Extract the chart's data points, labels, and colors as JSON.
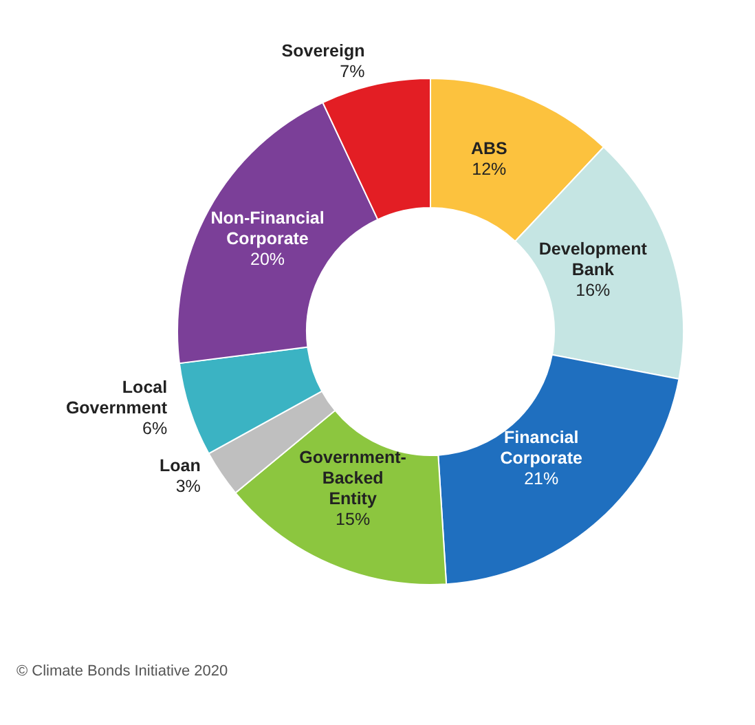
{
  "chart_data": {
    "type": "donut",
    "categories": [
      "ABS",
      "Development Bank",
      "Financial Corporate",
      "Government-Backed Entity",
      "Loan",
      "Local Government",
      "Non-Financial Corporate",
      "Sovereign"
    ],
    "values": [
      12,
      16,
      21,
      15,
      3,
      6,
      20,
      7
    ],
    "value_labels": [
      "12%",
      "16%",
      "21%",
      "15%",
      "3%",
      "6%",
      "20%",
      "7%"
    ],
    "colors": [
      "#fcc23e",
      "#c5e5e3",
      "#1f6fbf",
      "#8cc63f",
      "#bfbfbf",
      "#3bb3c3",
      "#7b3f98",
      "#e31e24"
    ],
    "annotations": [
      "© Climate Bonds Initiative 2020"
    ]
  }
}
